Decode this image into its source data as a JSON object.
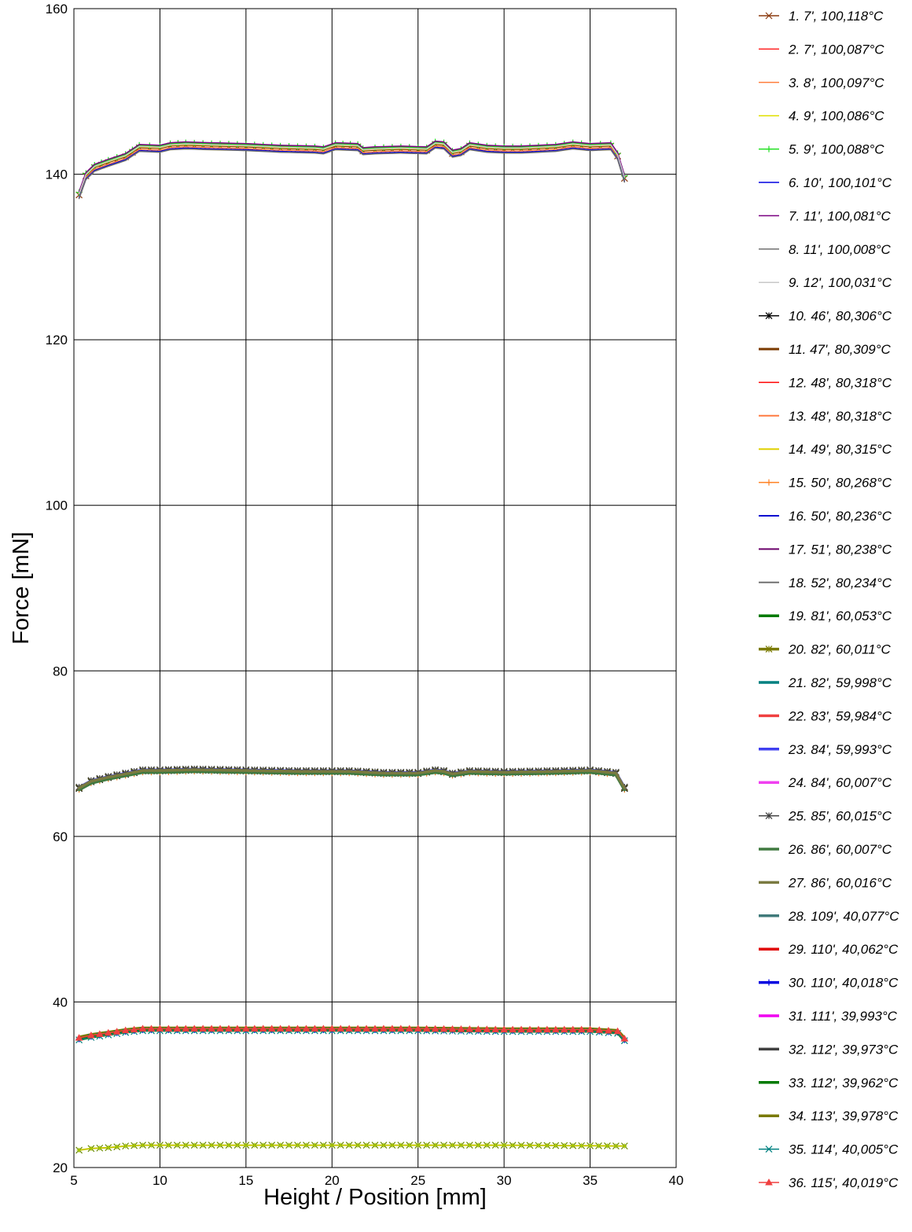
{
  "chart_data": {
    "type": "line",
    "title": "",
    "xlabel": "Height / Position [mm]",
    "ylabel": "Force [mN]",
    "xlim": [
      5,
      40
    ],
    "ylim": [
      20,
      160
    ],
    "xticks": [
      "5",
      "10",
      "15",
      "20",
      "25",
      "30",
      "35",
      "40"
    ],
    "yticks": [
      "20",
      "40",
      "60",
      "80",
      "100",
      "120",
      "140",
      "160"
    ],
    "grid": true,
    "legend_position": "right",
    "groups": [
      {
        "name_note": "series 1-9 (~100 °C)",
        "x": [
          5.3,
          5.7,
          6.2,
          7.0,
          8.0,
          8.8,
          10.0,
          10.6,
          11.5,
          13.0,
          15.0,
          17.0,
          19.0,
          19.5,
          20.2,
          21.5,
          21.8,
          22.5,
          24.0,
          25.5,
          26.0,
          26.5,
          27.0,
          27.5,
          28.0,
          29.0,
          30.0,
          31.0,
          32.0,
          33.0,
          34.0,
          35.0,
          36.2,
          36.6,
          37.0
        ],
        "y": [
          137.5,
          139.8,
          140.8,
          141.4,
          142.1,
          143.2,
          143.1,
          143.4,
          143.5,
          143.4,
          143.3,
          143.1,
          143.0,
          142.9,
          143.4,
          143.3,
          142.8,
          142.9,
          143.0,
          142.9,
          143.6,
          143.5,
          142.5,
          142.7,
          143.4,
          143.1,
          143.0,
          143.0,
          143.1,
          143.2,
          143.5,
          143.3,
          143.4,
          142.2,
          139.5
        ]
      },
      {
        "name_note": "series 10-18 and 19-27 (~80 / ~60 °C)",
        "x": [
          5.3,
          6.0,
          7.0,
          8.0,
          9.0,
          10.0,
          12.0,
          15.0,
          18.0,
          21.0,
          23.0,
          25.0,
          26.0,
          26.5,
          27.0,
          28.0,
          30.0,
          33.0,
          35.0,
          36.5,
          37.0
        ],
        "y": [
          65.8,
          66.6,
          67.1,
          67.5,
          67.9,
          67.9,
          68.0,
          67.9,
          67.8,
          67.8,
          67.6,
          67.6,
          67.9,
          67.8,
          67.5,
          67.8,
          67.7,
          67.8,
          67.9,
          67.6,
          65.8
        ]
      },
      {
        "name_note": "series 28-36 (~40 °C)",
        "x": [
          5.3,
          6.0,
          7.0,
          8.0,
          9.0,
          10.0,
          12.0,
          15.0,
          20.0,
          25.0,
          30.0,
          35.0,
          36.6,
          37.0
        ],
        "y": [
          35.6,
          35.9,
          36.2,
          36.5,
          36.7,
          36.7,
          36.7,
          36.7,
          36.7,
          36.7,
          36.6,
          36.6,
          36.4,
          35.5
        ]
      },
      {
        "name_note": "low curve",
        "x": [
          5.3,
          6.0,
          7.0,
          8.0,
          9.0,
          12.0,
          20.0,
          30.0,
          37.0
        ],
        "y": [
          22.1,
          22.3,
          22.4,
          22.6,
          22.7,
          22.7,
          22.7,
          22.7,
          22.6
        ]
      }
    ],
    "series": [
      {
        "name": "1. 7', 100,118°C",
        "color": "#8B3A0F",
        "marker": "x",
        "width": 1.5
      },
      {
        "name": "2. 7', 100,087°C",
        "color": "#FF2020",
        "marker": "none",
        "width": 1.5
      },
      {
        "name": "3. 8', 100,097°C",
        "color": "#FF8040",
        "marker": "none",
        "width": 1.5
      },
      {
        "name": "4. 9', 100,086°C",
        "color": "#E0E000",
        "marker": "none",
        "width": 1.5
      },
      {
        "name": "5. 9', 100,088°C",
        "color": "#20E020",
        "marker": "plus",
        "width": 1.5
      },
      {
        "name": "6. 10', 100,101°C",
        "color": "#0000E0",
        "marker": "none",
        "width": 1.5
      },
      {
        "name": "7. 11', 100,081°C",
        "color": "#7A0080",
        "marker": "none",
        "width": 1.5
      },
      {
        "name": "8. 11', 100,008°C",
        "color": "#707070",
        "marker": "none",
        "width": 1.5
      },
      {
        "name": "9. 12', 100,031°C",
        "color": "#C8C8C8",
        "marker": "none",
        "width": 1.5
      },
      {
        "name": "10. 46', 80,306°C",
        "color": "#000000",
        "marker": "star",
        "width": 1.5
      },
      {
        "name": "11. 47', 80,309°C",
        "color": "#7A3A00",
        "marker": "none",
        "width": 3
      },
      {
        "name": "12. 48', 80,318°C",
        "color": "#FF0000",
        "marker": "none",
        "width": 1.5
      },
      {
        "name": "13. 48', 80,318°C",
        "color": "#FF7A40",
        "marker": "none",
        "width": 2
      },
      {
        "name": "14. 49', 80,315°C",
        "color": "#E0D000",
        "marker": "none",
        "width": 2
      },
      {
        "name": "15. 50', 80,268°C",
        "color": "#FF8020",
        "marker": "plus",
        "width": 1.5
      },
      {
        "name": "16. 50', 80,236°C",
        "color": "#0000D0",
        "marker": "none",
        "width": 2
      },
      {
        "name": "17. 51', 80,238°C",
        "color": "#6A006A",
        "marker": "none",
        "width": 2
      },
      {
        "name": "18. 52', 80,234°C",
        "color": "#707070",
        "marker": "none",
        "width": 2
      },
      {
        "name": "19. 81', 60,053°C",
        "color": "#007A00",
        "marker": "none",
        "width": 3.5
      },
      {
        "name": "20. 82', 60,011°C",
        "color": "#7A7A00",
        "marker": "star",
        "width": 3.5
      },
      {
        "name": "21. 82', 59,998°C",
        "color": "#008080",
        "marker": "none",
        "width": 3.5
      },
      {
        "name": "22. 83', 59,984°C",
        "color": "#F04040",
        "marker": "none",
        "width": 3.5
      },
      {
        "name": "23. 84', 59,993°C",
        "color": "#4040F0",
        "marker": "none",
        "width": 3.5
      },
      {
        "name": "24. 84', 60,007°C",
        "color": "#F040F0",
        "marker": "none",
        "width": 3.5
      },
      {
        "name": "25. 85', 60,015°C",
        "color": "#404040",
        "marker": "star",
        "width": 1.5
      },
      {
        "name": "26. 86', 60,007°C",
        "color": "#407A40",
        "marker": "none",
        "width": 3.5
      },
      {
        "name": "27. 86', 60,016°C",
        "color": "#7A7A40",
        "marker": "none",
        "width": 3.5
      },
      {
        "name": "28. 109', 40,077°C",
        "color": "#407A7A",
        "marker": "none",
        "width": 3.5
      },
      {
        "name": "29. 110', 40,062°C",
        "color": "#E00000",
        "marker": "none",
        "width": 3.5
      },
      {
        "name": "30. 110', 40,018°C",
        "color": "#0000E0",
        "marker": "plus",
        "width": 3.5
      },
      {
        "name": "31. 111', 39,993°C",
        "color": "#F000F0",
        "marker": "none",
        "width": 3.5
      },
      {
        "name": "32. 112', 39,973°C",
        "color": "#404040",
        "marker": "none",
        "width": 3.5
      },
      {
        "name": "33. 112', 39,962°C",
        "color": "#007A00",
        "marker": "none",
        "width": 3.5
      },
      {
        "name": "34. 113', 39,978°C",
        "color": "#7A7A00",
        "marker": "none",
        "width": 3.5
      },
      {
        "name": "35. 114', 40,005°C",
        "color": "#008080",
        "marker": "x",
        "width": 1.5
      },
      {
        "name": "36. 115', 40,019°C",
        "color": "#F04040",
        "marker": "triangle",
        "width": 1.5
      }
    ]
  }
}
